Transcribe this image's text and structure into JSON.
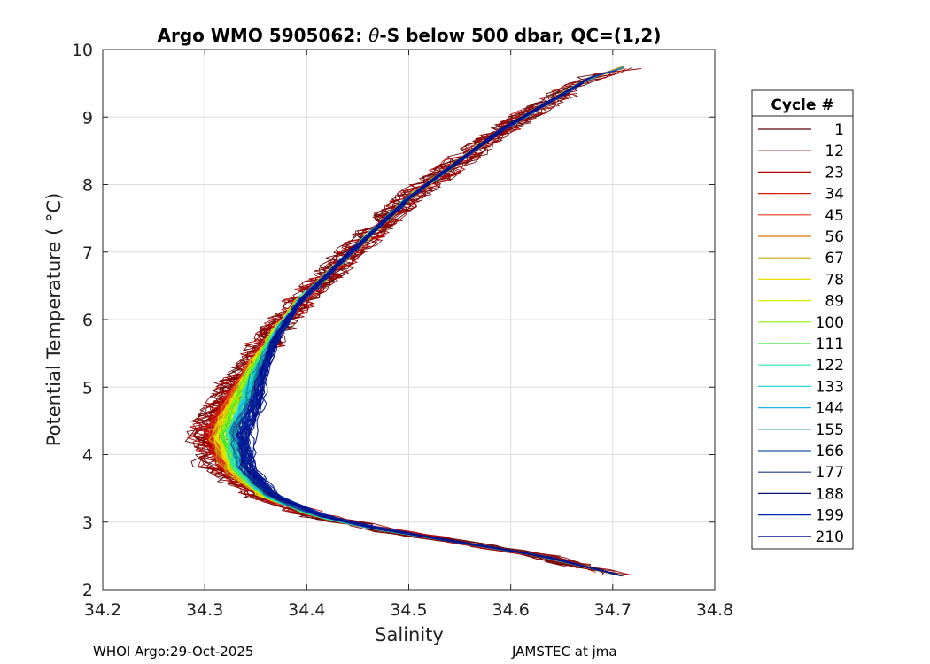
{
  "chart_data": {
    "type": "line",
    "title_pre": "Argo WMO 5905062: ",
    "title_theta": "θ",
    "title_post": "-S below 500 dbar,  QC=(1,2)",
    "xlabel": "Salinity",
    "ylabel": "Potential Temperature ( °C)",
    "xlim": [
      34.2,
      34.8
    ],
    "ylim": [
      2,
      10
    ],
    "xticks": [
      "34.2",
      "34.3",
      "34.4",
      "34.5",
      "34.6",
      "34.7",
      "34.8"
    ],
    "yticks": [
      "2",
      "3",
      "4",
      "5",
      "6",
      "7",
      "8",
      "9",
      "10"
    ],
    "grid": true,
    "legend": {
      "title": "Cycle #",
      "position": "right-outside",
      "entries": [
        {
          "label": "1",
          "color": "#5a0000"
        },
        {
          "label": "12",
          "color": "#8a0000"
        },
        {
          "label": "23",
          "color": "#b40000"
        },
        {
          "label": "34",
          "color": "#d81a0e"
        },
        {
          "label": "45",
          "color": "#e6381c"
        },
        {
          "label": "56",
          "color": "#d97a0a"
        },
        {
          "label": "67",
          "color": "#c8a800"
        },
        {
          "label": "78",
          "color": "#e8e000"
        },
        {
          "label": "89",
          "color": "#d7f000"
        },
        {
          "label": "100",
          "color": "#8cf000"
        },
        {
          "label": "111",
          "color": "#3ce83c"
        },
        {
          "label": "122",
          "color": "#2ee6a0"
        },
        {
          "label": "133",
          "color": "#22d8d8"
        },
        {
          "label": "144",
          "color": "#1ab4e6"
        },
        {
          "label": "155",
          "color": "#008c8c"
        },
        {
          "label": "166",
          "color": "#1e5aa0"
        },
        {
          "label": "177",
          "color": "#1e3c8c"
        },
        {
          "label": "188",
          "color": "#0a0a78"
        },
        {
          "label": "199",
          "color": "#0028b4"
        },
        {
          "label": "210",
          "color": "#00148c"
        }
      ]
    },
    "profile_envelope": {
      "description_points": [
        {
          "theta": 2.2,
          "s_center": 34.71,
          "spread": 0.0
        },
        {
          "theta": 2.35,
          "s_center": 34.67,
          "spread": 0.005
        },
        {
          "theta": 2.5,
          "s_center": 34.63,
          "spread": 0.008
        },
        {
          "theta": 2.7,
          "s_center": 34.55,
          "spread": 0.012
        },
        {
          "theta": 2.9,
          "s_center": 34.47,
          "spread": 0.018
        },
        {
          "theta": 3.1,
          "s_center": 34.41,
          "spread": 0.025
        },
        {
          "theta": 3.4,
          "s_center": 34.36,
          "spread": 0.03
        },
        {
          "theta": 3.8,
          "s_center": 34.33,
          "spread": 0.03
        },
        {
          "theta": 4.3,
          "s_center": 34.32,
          "spread": 0.03
        },
        {
          "theta": 4.8,
          "s_center": 34.335,
          "spread": 0.025
        },
        {
          "theta": 5.3,
          "s_center": 34.35,
          "spread": 0.02
        },
        {
          "theta": 5.8,
          "s_center": 34.37,
          "spread": 0.018
        },
        {
          "theta": 6.3,
          "s_center": 34.395,
          "spread": 0.015
        },
        {
          "theta": 6.8,
          "s_center": 34.43,
          "spread": 0.012
        },
        {
          "theta": 7.3,
          "s_center": 34.465,
          "spread": 0.01
        },
        {
          "theta": 7.8,
          "s_center": 34.5,
          "spread": 0.01
        },
        {
          "theta": 8.3,
          "s_center": 34.545,
          "spread": 0.01
        },
        {
          "theta": 8.8,
          "s_center": 34.59,
          "spread": 0.01
        },
        {
          "theta": 9.2,
          "s_center": 34.635,
          "spread": 0.008
        },
        {
          "theta": 9.6,
          "s_center": 34.68,
          "spread": 0.006
        },
        {
          "theta": 9.72,
          "s_center": 34.71,
          "spread": 0.004
        }
      ]
    }
  },
  "footer": {
    "left": "WHOI Argo:29-Oct-2025",
    "right": "JAMSTEC at jma"
  }
}
